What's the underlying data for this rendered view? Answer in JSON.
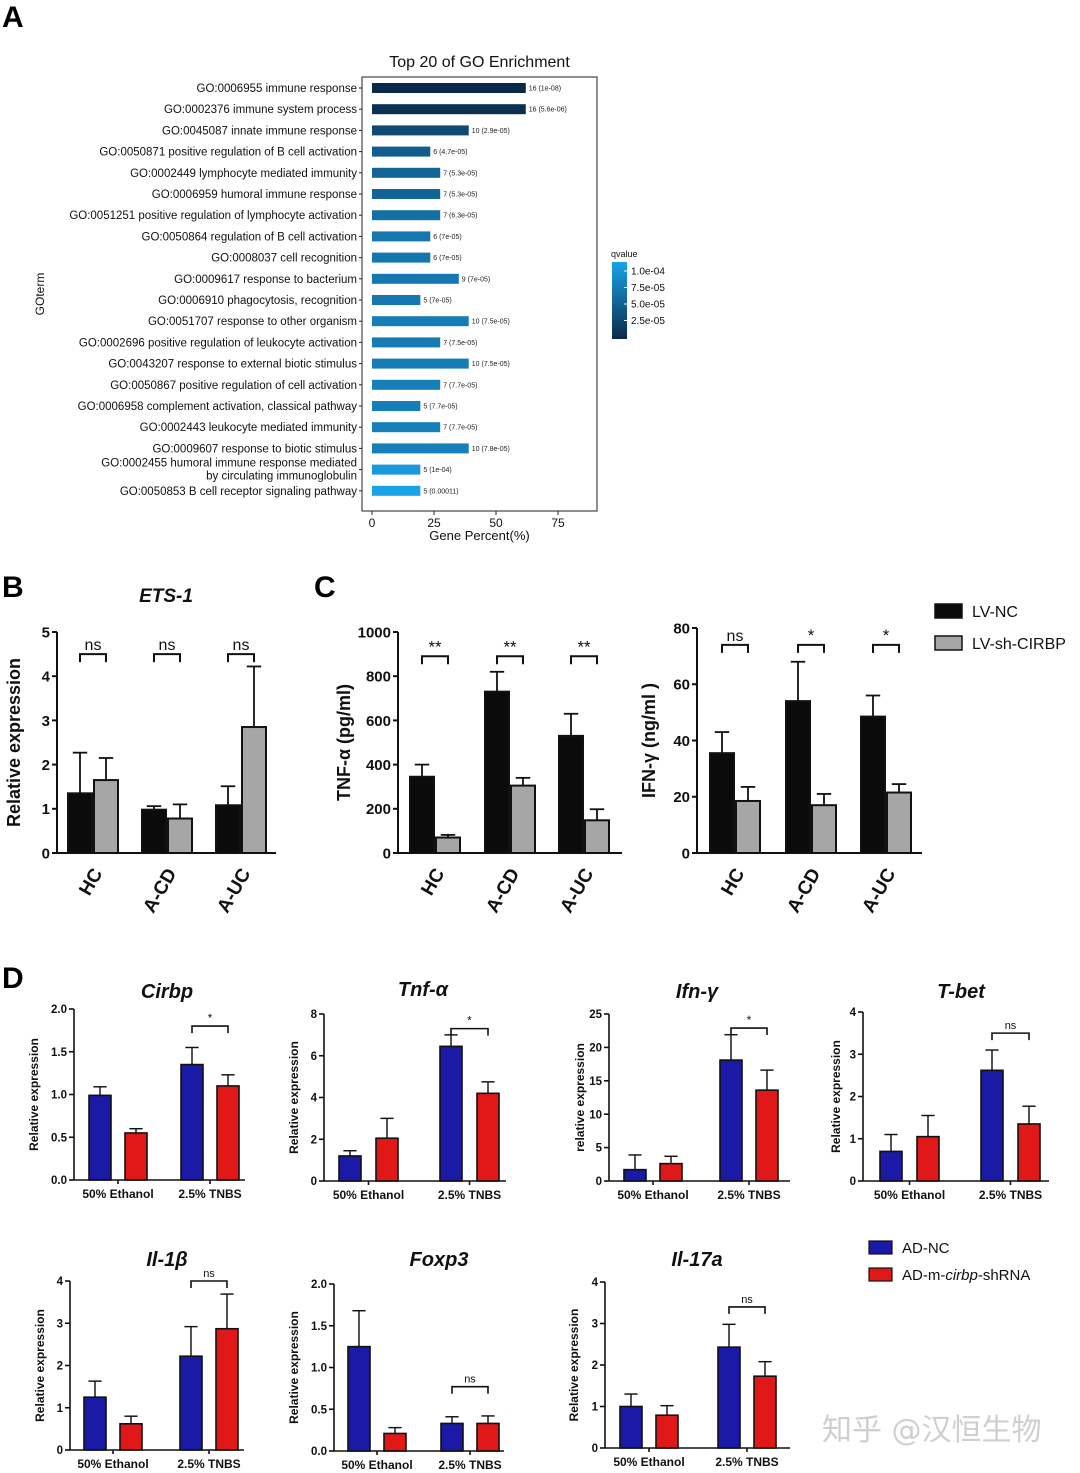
{
  "panels": {
    "a": {
      "letter": "A"
    },
    "b": {
      "letter": "B"
    },
    "c": {
      "letter": "C"
    },
    "d": {
      "letter": "D"
    }
  },
  "watermark": {
    "text": "知乎 @汉恒生物"
  },
  "colors": {
    "black_bar": "#0b0b0b",
    "grey_bar": "#a6a6a6",
    "blue_bar": "#1a1aa6",
    "red_bar": "#e01818",
    "go_dark": "#0b2a4a",
    "go_light": "#1aa3e8"
  },
  "chart_data": [
    {
      "id": "go",
      "type": "bar",
      "orientation": "horizontal",
      "title": "Top 20 of GO Enrichment",
      "xlabel": "Gene Percent(%)",
      "ylabel": "GOterm",
      "xlim": [
        0,
        90
      ],
      "xticks": [
        "0",
        "25",
        "50",
        "75"
      ],
      "xtick_values": [
        0,
        25,
        50,
        75
      ],
      "legend_title": "qvalue",
      "legend_labels": [
        "1.0e-04",
        "7.5e-05",
        "5.0e-05",
        "2.5e-05"
      ],
      "categories": [
        [
          "GO:0006955 immune response"
        ],
        [
          "GO:0002376 immune system process"
        ],
        [
          "GO:0045087 innate immune response"
        ],
        [
          "GO:0050871 positive regulation of B cell activation"
        ],
        [
          "GO:0002449 lymphocyte mediated immunity"
        ],
        [
          "GO:0006959 humoral immune response"
        ],
        [
          "GO:0051251 positive regulation of lymphocyte activation"
        ],
        [
          "GO:0050864 regulation of B cell activation"
        ],
        [
          "GO:0008037 cell recognition"
        ],
        [
          "GO:0009617 response to bacterium"
        ],
        [
          "GO:0006910 phagocytosis, recognition"
        ],
        [
          "GO:0051707 response to other organism"
        ],
        [
          "GO:0002696 positive regulation of leukocyte activation"
        ],
        [
          "GO:0043207 response to external biotic stimulus"
        ],
        [
          "GO:0050867 positive regulation of cell activation"
        ],
        [
          "GO:0006958 complement activation, classical pathway"
        ],
        [
          "GO:0002443 leukocyte mediated immunity"
        ],
        [
          "GO:0009607 response to biotic stimulus"
        ],
        [
          "GO:0002455 humoral immune response mediated",
          "by circulating immunoglobulin"
        ],
        [
          "GO:0050853 B cell receptor signaling pathway"
        ]
      ],
      "values": [
        62,
        62,
        39,
        23.5,
        27.5,
        27.5,
        27.5,
        23.5,
        23.5,
        35,
        19.5,
        39,
        27.5,
        39,
        27.5,
        19.5,
        27.5,
        39,
        19.5,
        19.5
      ],
      "qvalues": [
        1e-08,
        5.6e-06,
        2.9e-05,
        4.7e-05,
        5.3e-05,
        5.3e-05,
        6.3e-05,
        7e-05,
        7e-05,
        7e-05,
        7e-05,
        7.5e-05,
        7.5e-05,
        7.5e-05,
        7.7e-05,
        7.7e-05,
        7.7e-05,
        7.8e-05,
        0.0001,
        0.00011
      ],
      "data_labels": [
        "16 (1e-08)",
        "16 (5.6e-06)",
        "10 (2.9e-05)",
        "6 (4.7e-05)",
        "7 (5.3e-05)",
        "7 (5.3e-05)",
        "7 (6.3e-05)",
        "6 (7e-05)",
        "6 (7e-05)",
        "9 (7e-05)",
        "5 (7e-05)",
        "10 (7.5e-05)",
        "7 (7.5e-05)",
        "10 (7.5e-05)",
        "7 (7.7e-05)",
        "5 (7.7e-05)",
        "7 (7.7e-05)",
        "10 (7.8e-05)",
        "5 (1e-04)",
        "5 (0.00011)"
      ]
    },
    {
      "id": "ets1",
      "type": "bar",
      "title": "ETS-1",
      "title_italic": true,
      "ylabel": "Relative expression",
      "ylim": [
        0,
        5
      ],
      "yticks": [
        "0",
        "1",
        "2",
        "3",
        "4",
        "5"
      ],
      "categories": [
        "HC",
        "A-CD",
        "A-UC"
      ],
      "series": [
        {
          "name": "LV-NC",
          "color": "#0b0b0b",
          "values": [
            1.35,
            0.98,
            1.08
          ],
          "errors": [
            0.92,
            0.08,
            0.43
          ]
        },
        {
          "name": "LV-sh-CIRBP",
          "color": "#a6a6a6",
          "values": [
            1.65,
            0.78,
            2.85
          ],
          "errors": [
            0.5,
            0.32,
            1.37
          ]
        }
      ],
      "significance": [
        {
          "group": 0,
          "label": "ns",
          "level": 4.5
        },
        {
          "group": 1,
          "label": "ns",
          "level": 4.5
        },
        {
          "group": 2,
          "label": "ns",
          "level": 4.5
        }
      ]
    },
    {
      "id": "tnfa",
      "type": "bar",
      "ylabel": "TNF-α (pg/ml)",
      "ylim": [
        0,
        1000
      ],
      "yticks": [
        "0",
        "200",
        "400",
        "600",
        "800",
        "1000"
      ],
      "categories": [
        "HC",
        "A-CD",
        "A-UC"
      ],
      "series": [
        {
          "name": "LV-NC",
          "color": "#0b0b0b",
          "values": [
            345,
            730,
            530
          ],
          "errors": [
            55,
            90,
            100
          ]
        },
        {
          "name": "LV-sh-CIRBP",
          "color": "#a6a6a6",
          "values": [
            70,
            305,
            148
          ],
          "errors": [
            12,
            35,
            50
          ]
        }
      ],
      "significance": [
        {
          "group": 0,
          "label": "**",
          "level": 890
        },
        {
          "group": 1,
          "label": "**",
          "level": 890
        },
        {
          "group": 2,
          "label": "**",
          "level": 890
        }
      ]
    },
    {
      "id": "ifng",
      "type": "bar",
      "ylabel": "IFN-γ (ng/ml )",
      "ylim": [
        0,
        80
      ],
      "yticks": [
        "0",
        "20",
        "40",
        "60",
        "80"
      ],
      "categories": [
        "HC",
        "A-CD",
        "A-UC"
      ],
      "legend": [
        {
          "label": "LV-NC",
          "color": "#0b0b0b"
        },
        {
          "label": "LV-sh-CIRBP",
          "color": "#a6a6a6"
        }
      ],
      "series": [
        {
          "name": "LV-NC",
          "color": "#0b0b0b",
          "values": [
            35.5,
            54,
            48.5
          ],
          "errors": [
            7.5,
            14,
            7.5
          ]
        },
        {
          "name": "LV-sh-CIRBP",
          "color": "#a6a6a6",
          "values": [
            18.5,
            17,
            21.5
          ],
          "errors": [
            5,
            4,
            3
          ]
        }
      ],
      "significance": [
        {
          "group": 0,
          "label": "ns",
          "level": 74
        },
        {
          "group": 1,
          "label": "*",
          "level": 74
        },
        {
          "group": 2,
          "label": "*",
          "level": 74
        }
      ]
    },
    {
      "id": "cirbp",
      "type": "bar",
      "title": "Cirbp",
      "title_italic": true,
      "ylabel": "Relative expression",
      "ylim": [
        0,
        2.0
      ],
      "yticks": [
        "0.0",
        "0.5",
        "1.0",
        "1.5",
        "2.0"
      ],
      "categories": [
        "50% Ethanol",
        "2.5% TNBS"
      ],
      "series": [
        {
          "name": "AD-NC",
          "color": "#1a1aa6",
          "values": [
            0.99,
            1.35
          ],
          "errors": [
            0.1,
            0.2
          ]
        },
        {
          "name": "AD-m-cirbp-shRNA",
          "color": "#e01818",
          "values": [
            0.55,
            1.1
          ],
          "errors": [
            0.05,
            0.13
          ]
        }
      ],
      "significance": [
        {
          "group": 1,
          "label": "*",
          "level": 1.8
        }
      ]
    },
    {
      "id": "tnf",
      "type": "bar",
      "title": "Tnf-α",
      "title_italic": true,
      "ylabel": "Relative expression",
      "ylim": [
        0,
        8
      ],
      "yticks": [
        "0",
        "2",
        "4",
        "6",
        "8"
      ],
      "categories": [
        "50% Ethanol",
        "2.5% TNBS"
      ],
      "series": [
        {
          "name": "AD-NC",
          "color": "#1a1aa6",
          "values": [
            1.2,
            6.45
          ],
          "errors": [
            0.25,
            0.55
          ]
        },
        {
          "name": "AD-m-cirbp-shRNA",
          "color": "#e01818",
          "values": [
            2.05,
            4.2
          ],
          "errors": [
            0.95,
            0.55
          ]
        }
      ],
      "significance": [
        {
          "group": 1,
          "label": "*",
          "level": 7.3
        }
      ]
    },
    {
      "id": "ifn",
      "type": "bar",
      "title": "Ifn-γ",
      "title_italic": true,
      "ylabel": "relative expression",
      "ylim": [
        0,
        25
      ],
      "yticks": [
        "0",
        "5",
        "10",
        "15",
        "20",
        "25"
      ],
      "categories": [
        "50% Ethanol",
        "2.5% TNBS"
      ],
      "series": [
        {
          "name": "AD-NC",
          "color": "#1a1aa6",
          "values": [
            1.7,
            18.1
          ],
          "errors": [
            2.2,
            3.8
          ]
        },
        {
          "name": "AD-m-cirbp-shRNA",
          "color": "#e01818",
          "values": [
            2.6,
            13.6
          ],
          "errors": [
            1.1,
            3.0
          ]
        }
      ],
      "significance": [
        {
          "group": 1,
          "label": "*",
          "level": 22.9
        }
      ]
    },
    {
      "id": "tbet",
      "type": "bar",
      "title": "T-bet",
      "title_italic": true,
      "ylabel": "Relative expression",
      "ylim": [
        0,
        4
      ],
      "yticks": [
        "0",
        "1",
        "2",
        "3",
        "4"
      ],
      "categories": [
        "50% Ethanol",
        "2.5% TNBS"
      ],
      "series": [
        {
          "name": "AD-NC",
          "color": "#1a1aa6",
          "values": [
            0.7,
            2.62
          ],
          "errors": [
            0.4,
            0.48
          ]
        },
        {
          "name": "AD-m-cirbp-shRNA",
          "color": "#e01818",
          "values": [
            1.05,
            1.35
          ],
          "errors": [
            0.5,
            0.42
          ]
        }
      ],
      "significance": [
        {
          "group": 1,
          "label": "ns",
          "level": 3.5
        }
      ]
    },
    {
      "id": "il1b",
      "type": "bar",
      "title": "Il-1β",
      "title_italic": true,
      "ylabel": "Relative expression",
      "ylim": [
        0,
        4
      ],
      "yticks": [
        "0",
        "1",
        "2",
        "3",
        "4"
      ],
      "categories": [
        "50% Ethanol",
        "2.5% TNBS"
      ],
      "series": [
        {
          "name": "AD-NC",
          "color": "#1a1aa6",
          "values": [
            1.25,
            2.22
          ],
          "errors": [
            0.38,
            0.7
          ]
        },
        {
          "name": "AD-m-cirbp-shRNA",
          "color": "#e01818",
          "values": [
            0.62,
            2.87
          ],
          "errors": [
            0.18,
            0.82
          ]
        }
      ],
      "significance": [
        {
          "group": 1,
          "label": "ns",
          "level": 4.0
        }
      ]
    },
    {
      "id": "foxp3",
      "type": "bar",
      "title": "Foxp3",
      "title_italic": true,
      "ylabel": "Relative expression",
      "ylim": [
        0,
        2.0
      ],
      "yticks": [
        "0.0",
        "0.5",
        "1.0",
        "1.5",
        "2.0"
      ],
      "categories": [
        "50% Ethanol",
        "2.5% TNBS"
      ],
      "series": [
        {
          "name": "AD-NC",
          "color": "#1a1aa6",
          "values": [
            1.25,
            0.33
          ],
          "errors": [
            0.43,
            0.08
          ]
        },
        {
          "name": "AD-m-cirbp-shRNA",
          "color": "#e01818",
          "values": [
            0.21,
            0.33
          ],
          "errors": [
            0.07,
            0.09
          ]
        }
      ],
      "significance": [
        {
          "group": 1,
          "label": "ns",
          "level": 0.77
        }
      ]
    },
    {
      "id": "il17a",
      "type": "bar",
      "title": "Il-17a",
      "title_italic": true,
      "ylabel": "Relative expression",
      "ylim": [
        0,
        4
      ],
      "yticks": [
        "0",
        "1",
        "2",
        "3",
        "4"
      ],
      "categories": [
        "50% Ethanol",
        "2.5% TNBS"
      ],
      "legend": [
        {
          "label": "AD-NC",
          "color": "#1a1aa6"
        },
        {
          "label_parts": [
            "AD-m-",
            "cirbp",
            "-shRNA"
          ],
          "color": "#e01818"
        }
      ],
      "series": [
        {
          "name": "AD-NC",
          "color": "#1a1aa6",
          "values": [
            1.0,
            2.43
          ],
          "errors": [
            0.3,
            0.55
          ]
        },
        {
          "name": "AD-m-cirbp-shRNA",
          "color": "#e01818",
          "values": [
            0.79,
            1.73
          ],
          "errors": [
            0.23,
            0.35
          ]
        }
      ],
      "significance": [
        {
          "group": 1,
          "label": "ns",
          "level": 3.4
        }
      ]
    }
  ]
}
